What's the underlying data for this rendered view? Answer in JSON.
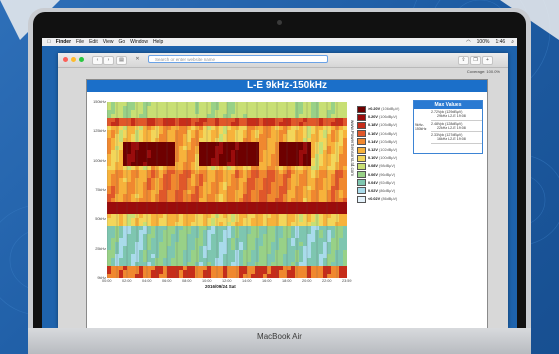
{
  "device": {
    "brand": "MacBook Air"
  },
  "menubar": {
    "apple": "",
    "items": [
      "Finder",
      "File",
      "Edit",
      "View",
      "Go",
      "Window",
      "Help"
    ],
    "battery": "100%",
    "time": "1:46"
  },
  "browser": {
    "address_placeholder": "Search or enter website name"
  },
  "page": {
    "coverage": "Coverage: 100.0%",
    "chart_title": "L-E 9kHz-150kHz",
    "date_label": "2016/09/24 Sat",
    "watermark": "www.PowerSensorsLtd.com"
  },
  "chart_data": {
    "type": "heatmap",
    "title": "L-E 9kHz-150kHz",
    "y_ticks": [
      "150kHz",
      "125kHz",
      "100kHz",
      "75kHz",
      "50kHz",
      "25kHz",
      "9kHz"
    ],
    "x_ticks": [
      "00:00",
      "02:00",
      "04:00",
      "06:00",
      "08:00",
      "10:00",
      "12:00",
      "14:00",
      "16:00",
      "18:00",
      "20:00",
      "22:00",
      "23:59"
    ],
    "xlabel": "2016/09/24 Sat",
    "legend": [
      {
        "label": ">0.20V",
        "sub": "(106dBμV)",
        "color": "#6e0000"
      },
      {
        "label": "0.20V",
        "sub": "(106dBμV)",
        "color": "#9a0c0c"
      },
      {
        "label": "0.18V",
        "sub": "(105dBμV)",
        "color": "#c62d1a"
      },
      {
        "label": "0.16V",
        "sub": "(104dBμV)",
        "color": "#e0572a"
      },
      {
        "label": "0.14V",
        "sub": "(103dBμV)",
        "color": "#f0882f"
      },
      {
        "label": "0.12V",
        "sub": "(102dBμV)",
        "color": "#f7b23b"
      },
      {
        "label": "0.10V",
        "sub": "(100dBμV)",
        "color": "#f3d65a"
      },
      {
        "label": "0.08V",
        "sub": "(98dBμV)",
        "color": "#c8df74"
      },
      {
        "label": "0.06V",
        "sub": "(96dBμV)",
        "color": "#98d187"
      },
      {
        "label": "0.04V",
        "sub": "(92dBμV)",
        "color": "#7ec6b0"
      },
      {
        "label": "0.02V",
        "sub": "(86dBμV)",
        "color": "#a9dbeb"
      },
      {
        "label": "<0.02V",
        "sub": "(86dBμV)",
        "color": "#e4f2fb"
      }
    ]
  },
  "max_values": {
    "title": "Max Values",
    "side_label": "9kHz-150kHz",
    "rows": [
      {
        "value": "2.72Vpk (129dBμV)",
        "freq": "29kHz",
        "ch": "L2-E",
        "time": "19:08"
      },
      {
        "value": "2.48Vpk (128dBμV)",
        "freq": "22kHz",
        "ch": "L2-E",
        "time": "19:08"
      },
      {
        "value": "2.33Vpk (127dBμV)",
        "freq": "16kHz",
        "ch": "L2-E",
        "time": "19:08"
      }
    ]
  },
  "colors": {
    "accent": "#1b6fc9",
    "background": "#1f5ea6"
  }
}
